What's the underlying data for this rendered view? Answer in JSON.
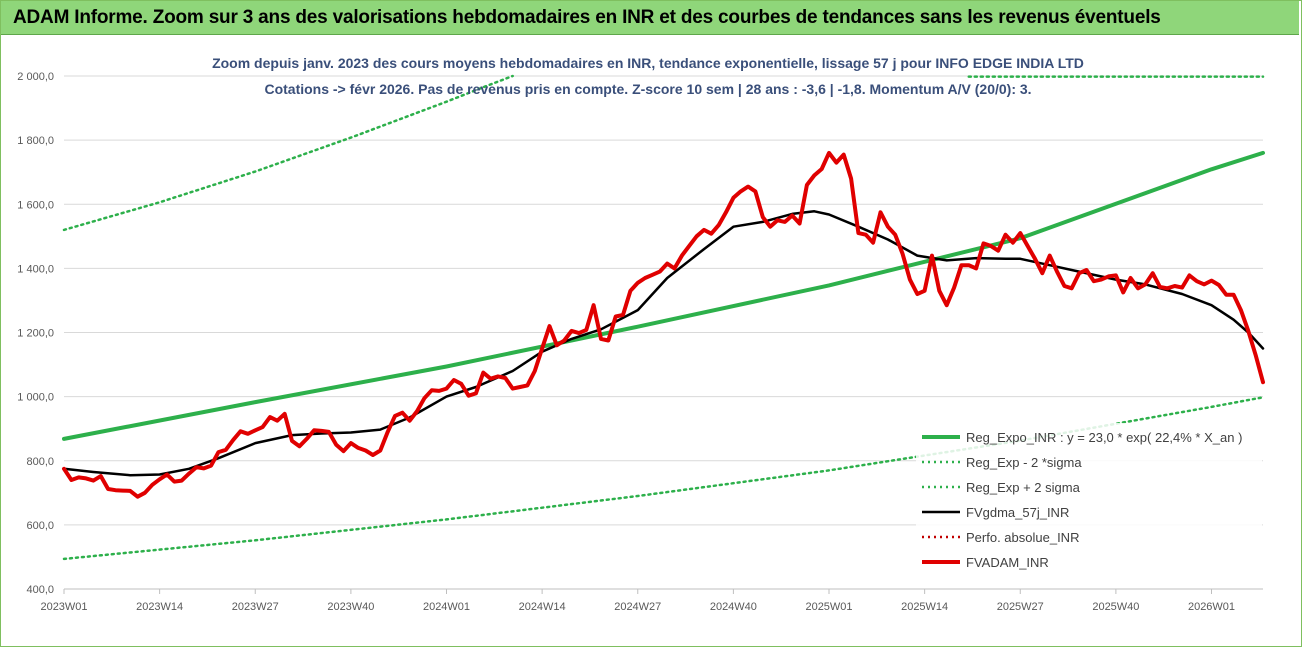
{
  "banner": {
    "title": "ADAM Informe. Zoom sur 3 ans des valorisations hebdomadaires en INR et des courbes de tendances sans les revenus éventuels"
  },
  "chart_data": {
    "type": "line",
    "subtitle_line1": "Zoom depuis janv. 2023 des cours moyens hebdomadaires en INR, tendance exponentielle, lissage 57 j pour INFO EDGE INDIA LTD",
    "subtitle_line2": "Cotations -> févr 2026.  Pas de revenus pris en compte. Z-score 10 sem | 28 ans : -3,6 | -1,8. Momentum A/V (20/0): 3.",
    "ylim": [
      400,
      2000
    ],
    "y_ticks": [
      "400,0",
      "600,0",
      "800,0",
      "1 000,0",
      "1 200,0",
      "1 400,0",
      "1 600,0",
      "1 800,0",
      "2 000,0"
    ],
    "x_range_weeks": [
      0,
      163
    ],
    "x_ticks": [
      {
        "label": "2023W01",
        "week": 0
      },
      {
        "label": "2023W14",
        "week": 13
      },
      {
        "label": "2023W27",
        "week": 26
      },
      {
        "label": "2023W40",
        "week": 39
      },
      {
        "label": "2024W01",
        "week": 52
      },
      {
        "label": "2024W14",
        "week": 65
      },
      {
        "label": "2024W27",
        "week": 78
      },
      {
        "label": "2024W40",
        "week": 91
      },
      {
        "label": "2025W01",
        "week": 104
      },
      {
        "label": "2025W14",
        "week": 117
      },
      {
        "label": "2025W27",
        "week": 130
      },
      {
        "label": "2025W40",
        "week": 143
      },
      {
        "label": "2026W01",
        "week": 156
      }
    ],
    "grid": true,
    "legend_position": "bottom-right",
    "series": [
      {
        "name": "Reg_Expo_INR : y = 23,0 * exp( 22,4% *  X_an )",
        "style": "solid-thick",
        "color": "#2db04b",
        "points": [
          [
            0,
            868
          ],
          [
            26,
            983
          ],
          [
            52,
            1094
          ],
          [
            78,
            1218
          ],
          [
            104,
            1347
          ],
          [
            130,
            1494
          ],
          [
            156,
            1709
          ],
          [
            163,
            1760
          ]
        ]
      },
      {
        "name": "Reg_Exp - 2 *sigma",
        "style": "dotted",
        "color": "#2db04b",
        "points": [
          [
            0,
            494
          ],
          [
            26,
            552
          ],
          [
            52,
            617
          ],
          [
            78,
            690
          ],
          [
            104,
            770
          ],
          [
            130,
            863
          ],
          [
            156,
            968
          ],
          [
            163,
            998
          ]
        ]
      },
      {
        "name": "Reg_Exp + 2 sigma",
        "style": "dotted",
        "color": "#2db04b",
        "points": [
          [
            0,
            1520
          ],
          [
            13,
            1606
          ],
          [
            26,
            1702
          ],
          [
            39,
            1808
          ],
          [
            52,
            1920
          ],
          [
            57,
            1965
          ],
          [
            61,
            2000
          ]
        ],
        "points_top": [
          [
            123,
            1998
          ],
          [
            163,
            1998
          ]
        ]
      },
      {
        "name": "FVgdma_57j_INR",
        "style": "solid",
        "color": "#000000",
        "points": [
          [
            0,
            775
          ],
          [
            4,
            765
          ],
          [
            9,
            755
          ],
          [
            13,
            757
          ],
          [
            17,
            775
          ],
          [
            21,
            808
          ],
          [
            26,
            855
          ],
          [
            31,
            880
          ],
          [
            35,
            885
          ],
          [
            39,
            888
          ],
          [
            43,
            897
          ],
          [
            47,
            935
          ],
          [
            52,
            1000
          ],
          [
            56,
            1030
          ],
          [
            61,
            1080
          ],
          [
            65,
            1140
          ],
          [
            69,
            1180
          ],
          [
            73,
            1210
          ],
          [
            78,
            1270
          ],
          [
            82,
            1370
          ],
          [
            87,
            1460
          ],
          [
            91,
            1530
          ],
          [
            95,
            1545
          ],
          [
            99,
            1570
          ],
          [
            102,
            1578
          ],
          [
            104,
            1568
          ],
          [
            108,
            1530
          ],
          [
            112,
            1490
          ],
          [
            116,
            1440
          ],
          [
            120,
            1425
          ],
          [
            124,
            1432
          ],
          [
            128,
            1430
          ],
          [
            130,
            1430
          ],
          [
            134,
            1410
          ],
          [
            138,
            1390
          ],
          [
            143,
            1365
          ],
          [
            147,
            1350
          ],
          [
            152,
            1320
          ],
          [
            156,
            1285
          ],
          [
            159,
            1240
          ],
          [
            161,
            1200
          ],
          [
            163,
            1150
          ]
        ]
      },
      {
        "name": "Perfo. absolue_INR",
        "style": "dotted",
        "color": "#c00000",
        "points": []
      },
      {
        "name": "FVADAM_INR",
        "style": "solid-thick",
        "color": "#e00000",
        "points": [
          [
            0,
            775
          ],
          [
            1,
            740
          ],
          [
            2,
            748
          ],
          [
            3,
            745
          ],
          [
            4,
            738
          ],
          [
            5,
            752
          ],
          [
            6,
            712
          ],
          [
            7,
            708
          ],
          [
            8,
            707
          ],
          [
            9,
            706
          ],
          [
            10,
            688
          ],
          [
            11,
            700
          ],
          [
            12,
            725
          ],
          [
            13,
            742
          ],
          [
            14,
            757
          ],
          [
            15,
            735
          ],
          [
            16,
            738
          ],
          [
            17,
            760
          ],
          [
            18,
            780
          ],
          [
            19,
            776
          ],
          [
            20,
            785
          ],
          [
            21,
            827
          ],
          [
            22,
            834
          ],
          [
            23,
            865
          ],
          [
            24,
            892
          ],
          [
            25,
            884
          ],
          [
            26,
            895
          ],
          [
            27,
            905
          ],
          [
            28,
            936
          ],
          [
            29,
            925
          ],
          [
            30,
            946
          ],
          [
            31,
            862
          ],
          [
            32,
            845
          ],
          [
            33,
            868
          ],
          [
            34,
            895
          ],
          [
            35,
            893
          ],
          [
            36,
            890
          ],
          [
            37,
            850
          ],
          [
            38,
            830
          ],
          [
            39,
            855
          ],
          [
            40,
            840
          ],
          [
            41,
            832
          ],
          [
            42,
            818
          ],
          [
            43,
            832
          ],
          [
            44,
            890
          ],
          [
            45,
            940
          ],
          [
            46,
            950
          ],
          [
            47,
            925
          ],
          [
            48,
            955
          ],
          [
            49,
            995
          ],
          [
            50,
            1020
          ],
          [
            51,
            1018
          ],
          [
            52,
            1025
          ],
          [
            53,
            1052
          ],
          [
            54,
            1040
          ],
          [
            55,
            1003
          ],
          [
            56,
            1010
          ],
          [
            57,
            1075
          ],
          [
            58,
            1056
          ],
          [
            59,
            1063
          ],
          [
            60,
            1058
          ],
          [
            61,
            1025
          ],
          [
            62,
            1030
          ],
          [
            63,
            1035
          ],
          [
            64,
            1080
          ],
          [
            65,
            1150
          ],
          [
            66,
            1220
          ],
          [
            67,
            1160
          ],
          [
            68,
            1175
          ],
          [
            69,
            1205
          ],
          [
            70,
            1198
          ],
          [
            71,
            1208
          ],
          [
            72,
            1285
          ],
          [
            73,
            1180
          ],
          [
            74,
            1175
          ],
          [
            75,
            1250
          ],
          [
            76,
            1255
          ],
          [
            77,
            1330
          ],
          [
            78,
            1355
          ],
          [
            79,
            1370
          ],
          [
            80,
            1380
          ],
          [
            81,
            1390
          ],
          [
            82,
            1415
          ],
          [
            83,
            1400
          ],
          [
            84,
            1440
          ],
          [
            85,
            1470
          ],
          [
            86,
            1500
          ],
          [
            87,
            1520
          ],
          [
            88,
            1508
          ],
          [
            89,
            1535
          ],
          [
            90,
            1575
          ],
          [
            91,
            1620
          ],
          [
            92,
            1640
          ],
          [
            93,
            1655
          ],
          [
            94,
            1640
          ],
          [
            95,
            1560
          ],
          [
            96,
            1530
          ],
          [
            97,
            1550
          ],
          [
            98,
            1545
          ],
          [
            99,
            1565
          ],
          [
            100,
            1540
          ],
          [
            101,
            1660
          ],
          [
            102,
            1690
          ],
          [
            103,
            1710
          ],
          [
            104,
            1760
          ],
          [
            105,
            1730
          ],
          [
            106,
            1755
          ],
          [
            107,
            1680
          ],
          [
            108,
            1510
          ],
          [
            109,
            1505
          ],
          [
            110,
            1480
          ],
          [
            111,
            1575
          ],
          [
            112,
            1530
          ],
          [
            113,
            1505
          ],
          [
            114,
            1445
          ],
          [
            115,
            1365
          ],
          [
            116,
            1320
          ],
          [
            117,
            1330
          ],
          [
            118,
            1440
          ],
          [
            119,
            1330
          ],
          [
            120,
            1285
          ],
          [
            121,
            1340
          ],
          [
            122,
            1410
          ],
          [
            123,
            1410
          ],
          [
            124,
            1400
          ],
          [
            125,
            1478
          ],
          [
            126,
            1470
          ],
          [
            127,
            1455
          ],
          [
            128,
            1505
          ],
          [
            129,
            1480
          ],
          [
            130,
            1510
          ],
          [
            131,
            1470
          ],
          [
            132,
            1430
          ],
          [
            133,
            1385
          ],
          [
            134,
            1440
          ],
          [
            135,
            1390
          ],
          [
            136,
            1345
          ],
          [
            137,
            1338
          ],
          [
            138,
            1385
          ],
          [
            139,
            1395
          ],
          [
            140,
            1360
          ],
          [
            141,
            1365
          ],
          [
            142,
            1375
          ],
          [
            143,
            1378
          ],
          [
            144,
            1325
          ],
          [
            145,
            1370
          ],
          [
            146,
            1338
          ],
          [
            147,
            1350
          ],
          [
            148,
            1385
          ],
          [
            149,
            1342
          ],
          [
            150,
            1338
          ],
          [
            151,
            1345
          ],
          [
            152,
            1340
          ],
          [
            153,
            1378
          ],
          [
            154,
            1360
          ],
          [
            155,
            1350
          ],
          [
            156,
            1362
          ],
          [
            157,
            1348
          ],
          [
            158,
            1318
          ],
          [
            159,
            1318
          ],
          [
            160,
            1270
          ],
          [
            161,
            1205
          ],
          [
            162,
            1130
          ],
          [
            163,
            1045
          ]
        ]
      }
    ]
  }
}
